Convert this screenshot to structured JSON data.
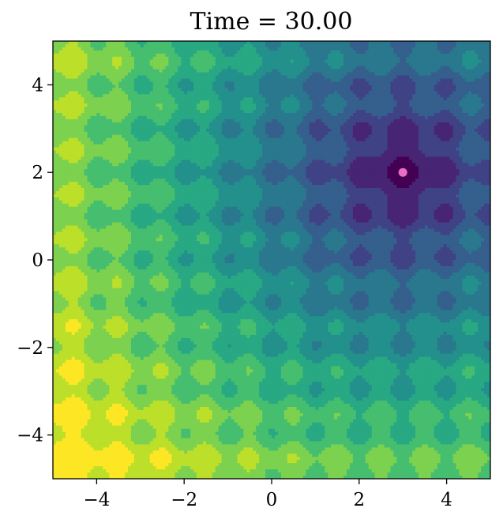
{
  "chart_data": {
    "type": "contourf",
    "title": "Time = 30.00",
    "xlabel": "",
    "ylabel": "",
    "xlim": [
      -5,
      5
    ],
    "ylim": [
      -5,
      5
    ],
    "x_ticks": [
      -4,
      -2,
      0,
      2,
      4
    ],
    "y_ticks": [
      -4,
      -2,
      0,
      2,
      4
    ],
    "x_tick_labels": [
      "−4",
      "−2",
      "0",
      "2",
      "4"
    ],
    "y_tick_labels": [
      "−4",
      "−2",
      "0",
      "2",
      "4"
    ],
    "grid": false,
    "colormap": "viridis",
    "minimum_location": [
      3,
      2
    ],
    "ripple_spacing": 1.0
  },
  "colors": {
    "viridis_stops": [
      "#440154",
      "#482878",
      "#3e4989",
      "#31688e",
      "#26828e",
      "#1f9e89",
      "#35b779",
      "#6ece58",
      "#b5de2b",
      "#fde725"
    ],
    "minimum_marker": "#e86fc4"
  }
}
